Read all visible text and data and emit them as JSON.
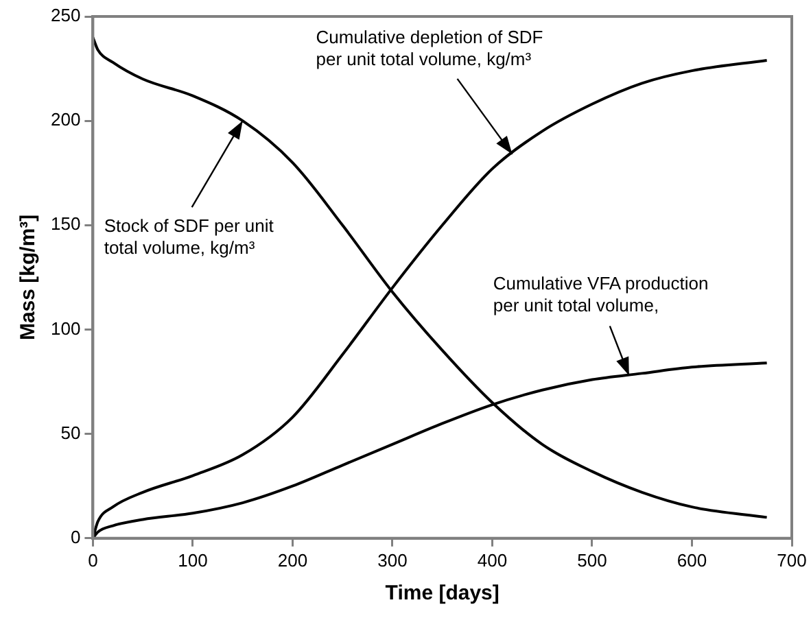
{
  "chart_data": {
    "type": "line",
    "xlabel": "Time [days]",
    "ylabel": "Mass [kg/m³]",
    "xlim": [
      0,
      700
    ],
    "xticks": [
      0,
      100,
      200,
      300,
      400,
      500,
      600,
      700
    ],
    "ylim": [
      0,
      250
    ],
    "yticks": [
      0,
      50,
      100,
      150,
      200,
      250
    ],
    "grid": false,
    "legend": false,
    "marker": "none",
    "line_style": "solid",
    "series": [
      {
        "color": "#000000",
        "x": [
          0,
          5,
          20,
          50,
          100,
          150,
          200,
          250,
          300,
          350,
          400,
          450,
          500,
          550,
          600,
          675
        ],
        "values": [
          240,
          234,
          228,
          220,
          212,
          200,
          180,
          150,
          118,
          90,
          65,
          45,
          32,
          22,
          15,
          10
        ]
      },
      {
        "color": "#000000",
        "x": [
          0,
          5,
          20,
          50,
          100,
          150,
          200,
          250,
          300,
          350,
          400,
          450,
          500,
          550,
          600,
          675
        ],
        "values": [
          0,
          8,
          15,
          22,
          30,
          40,
          58,
          88,
          120,
          150,
          177,
          195,
          208,
          218,
          224,
          229
        ]
      },
      {
        "color": "#000000",
        "x": [
          0,
          5,
          20,
          50,
          100,
          150,
          200,
          250,
          300,
          350,
          400,
          450,
          500,
          550,
          600,
          675
        ],
        "values": [
          0,
          3,
          6,
          9,
          12,
          17,
          25,
          35,
          45,
          55,
          64,
          71,
          76,
          79,
          82,
          84
        ]
      }
    ],
    "annotations": [
      {
        "text": "Stock of SDF per unit\ntotal volume, kg/m³",
        "x": 150,
        "y": 200
      },
      {
        "text": "Cumulative depletion of SDF\nper unit total volume, kg/m³",
        "x": 420,
        "y": 184
      },
      {
        "text": "Cumulative VFA production\nper unit total volume,",
        "x": 537,
        "y": 78
      }
    ]
  }
}
